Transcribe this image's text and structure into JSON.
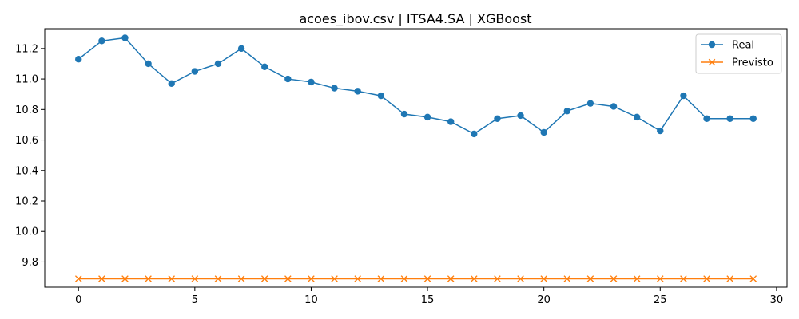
{
  "chart_data": {
    "type": "line",
    "title": "acoes_ibov.csv | ITSA4.SA | XGBoost",
    "xlabel": "",
    "ylabel": "",
    "xlim": [
      -1.45,
      30.45
    ],
    "ylim": [
      9.635,
      11.33
    ],
    "x_ticks": [
      0,
      5,
      10,
      15,
      20,
      25,
      30
    ],
    "y_ticks": [
      9.8,
      10.0,
      10.2,
      10.4,
      10.6,
      10.8,
      11.0,
      11.2
    ],
    "x_tick_labels": [
      "0",
      "5",
      "10",
      "15",
      "20",
      "25",
      "30"
    ],
    "y_tick_labels": [
      "9.8",
      "10.0",
      "10.2",
      "10.4",
      "10.6",
      "10.8",
      "11.0",
      "11.2"
    ],
    "grid": false,
    "legend_position": "top-right",
    "x": [
      0,
      1,
      2,
      3,
      4,
      5,
      6,
      7,
      8,
      9,
      10,
      11,
      12,
      13,
      14,
      15,
      16,
      17,
      18,
      19,
      20,
      21,
      22,
      23,
      24,
      25,
      26,
      27,
      28,
      29
    ],
    "series": [
      {
        "name": "Real",
        "color": "#1f77b4",
        "marker": "circle",
        "values": [
          11.13,
          11.25,
          11.27,
          11.1,
          10.97,
          11.05,
          11.1,
          11.2,
          11.08,
          11.0,
          10.98,
          10.94,
          10.92,
          10.89,
          10.77,
          10.75,
          10.72,
          10.64,
          10.74,
          10.76,
          10.65,
          10.79,
          10.84,
          10.82,
          10.75,
          10.66,
          10.89,
          10.74,
          10.74,
          10.74
        ]
      },
      {
        "name": "Previsto",
        "color": "#ff7f0e",
        "marker": "x",
        "values": [
          9.69,
          9.69,
          9.69,
          9.69,
          9.69,
          9.69,
          9.69,
          9.69,
          9.69,
          9.69,
          9.69,
          9.69,
          9.69,
          9.69,
          9.69,
          9.69,
          9.69,
          9.69,
          9.69,
          9.69,
          9.69,
          9.69,
          9.69,
          9.69,
          9.69,
          9.69,
          9.69,
          9.69,
          9.69,
          9.69
        ]
      }
    ]
  }
}
